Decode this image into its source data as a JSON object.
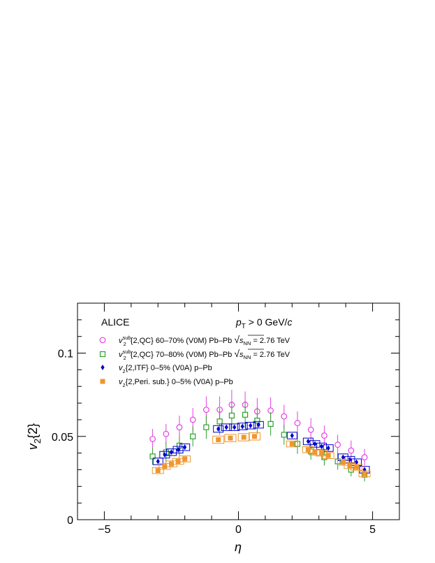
{
  "chart_data": {
    "type": "scatter",
    "experiment": "ALICE",
    "cut": {
      "var": "p",
      "sub": "T",
      "text": " > 0 GeV/",
      "unit": "c"
    },
    "xlabel": "η",
    "ylabel": {
      "main": "v",
      "sub": "2",
      "rest": "{2}"
    },
    "xlim": [
      -6,
      6
    ],
    "ylim": [
      0,
      0.13
    ],
    "xticks": [
      -5,
      0,
      5
    ],
    "yticks": [
      0,
      0.05,
      0.1
    ],
    "xtick_labels": [
      "−5",
      "0",
      "5"
    ],
    "ytick_labels": [
      "0",
      "0.05",
      "0.1"
    ],
    "legend_position": "top-left",
    "series": [
      {
        "legend": {
          "v": "v",
          "sup": "sub",
          "sub": "2",
          "body": "{2,QC} 60–70% (V0M) Pb–Pb ",
          "sqrt_s": "s",
          "sqrt_sub": "NN",
          "energy": " = 2.76 TeV"
        },
        "marker": "open-circle",
        "color": "#e53fe5",
        "x": [
          -3.2,
          -2.7,
          -2.2,
          -1.7,
          -1.2,
          -0.7,
          -0.25,
          0.25,
          0.7,
          1.2,
          1.7,
          2.2,
          2.7,
          3.2,
          3.7,
          4.2,
          4.7
        ],
        "y": [
          0.0485,
          0.0515,
          0.0555,
          0.06,
          0.066,
          0.066,
          0.069,
          0.069,
          0.065,
          0.0655,
          0.062,
          0.058,
          0.054,
          0.0505,
          0.045,
          0.0415,
          0.0375
        ],
        "yerr": [
          0.006,
          0.006,
          0.007,
          0.007,
          0.008,
          0.008,
          0.009,
          0.008,
          0.008,
          0.008,
          0.007,
          0.007,
          0.007,
          0.006,
          0.006,
          0.006,
          0.005
        ]
      },
      {
        "legend": {
          "v": "v",
          "sup": "sub",
          "sub": "2",
          "body": "{2,QC} 70–80% (V0M) Pb–Pb ",
          "sqrt_s": "s",
          "sqrt_sub": "NN",
          "energy": " = 2.76 TeV"
        },
        "marker": "open-square",
        "color": "#2ca02c",
        "x": [
          -3.2,
          -2.7,
          -2.2,
          -1.7,
          -1.2,
          -0.7,
          -0.25,
          0.25,
          0.7,
          1.2,
          1.7,
          2.2,
          2.7,
          3.2,
          3.7,
          4.2,
          4.7
        ],
        "y": [
          0.038,
          0.0405,
          0.0445,
          0.05,
          0.0555,
          0.059,
          0.0625,
          0.063,
          0.0595,
          0.0575,
          0.051,
          0.0455,
          0.041,
          0.0375,
          0.035,
          0.03,
          0.027
        ],
        "yerr": [
          0.005,
          0.006,
          0.006,
          0.006,
          0.007,
          0.008,
          0.008,
          0.008,
          0.008,
          0.007,
          0.006,
          0.006,
          0.005,
          0.005,
          0.005,
          0.004,
          0.004
        ]
      },
      {
        "legend": {
          "v": "v",
          "sub": "2",
          "body": "{2,ITF} 0–5% (V0A) p–Pb"
        },
        "marker": "filled-diamond",
        "color": "#0000cc",
        "x": [
          -3.0,
          -2.75,
          -2.5,
          -2.25,
          -2.0,
          -0.75,
          -0.45,
          -0.15,
          0.15,
          0.45,
          0.75,
          2.0,
          2.6,
          2.85,
          3.1,
          3.35,
          3.9,
          4.15,
          4.4,
          4.7
        ],
        "y": [
          0.035,
          0.039,
          0.0405,
          0.042,
          0.0435,
          0.0545,
          0.0555,
          0.0555,
          0.056,
          0.0565,
          0.057,
          0.0505,
          0.047,
          0.0455,
          0.044,
          0.043,
          0.0375,
          0.036,
          0.0345,
          0.03
        ],
        "yerr": [
          0.001,
          0.001,
          0.001,
          0.001,
          0.001,
          0.001,
          0.001,
          0.001,
          0.001,
          0.001,
          0.001,
          0.001,
          0.001,
          0.001,
          0.001,
          0.001,
          0.001,
          0.001,
          0.001,
          0.001
        ],
        "syst": [
          0.002,
          0.002,
          0.002,
          0.002,
          0.002,
          0.002,
          0.002,
          0.002,
          0.002,
          0.002,
          0.002,
          0.002,
          0.002,
          0.002,
          0.002,
          0.002,
          0.002,
          0.002,
          0.002,
          0.002
        ]
      },
      {
        "legend": {
          "v": "v",
          "sub": "2",
          "body": "{2,Peri. sub.} 0–5% (V0A) p–Pb"
        },
        "marker": "filled-square",
        "color": "#f0962e",
        "x": [
          -3.0,
          -2.75,
          -2.5,
          -2.25,
          -2.0,
          -0.75,
          -0.3,
          0.2,
          0.6,
          2.0,
          2.6,
          2.85,
          3.1,
          3.35,
          3.9,
          4.15,
          4.4,
          4.7
        ],
        "y": [
          0.0295,
          0.032,
          0.0335,
          0.035,
          0.0365,
          0.048,
          0.049,
          0.0495,
          0.05,
          0.0455,
          0.042,
          0.0405,
          0.04,
          0.0385,
          0.0345,
          0.0325,
          0.0315,
          0.0275
        ],
        "syst": [
          0.0018,
          0.0018,
          0.0018,
          0.0018,
          0.0018,
          0.0022,
          0.0022,
          0.0022,
          0.0022,
          0.0018,
          0.0018,
          0.0018,
          0.0018,
          0.0018,
          0.0018,
          0.0018,
          0.0018,
          0.0018
        ]
      }
    ]
  }
}
